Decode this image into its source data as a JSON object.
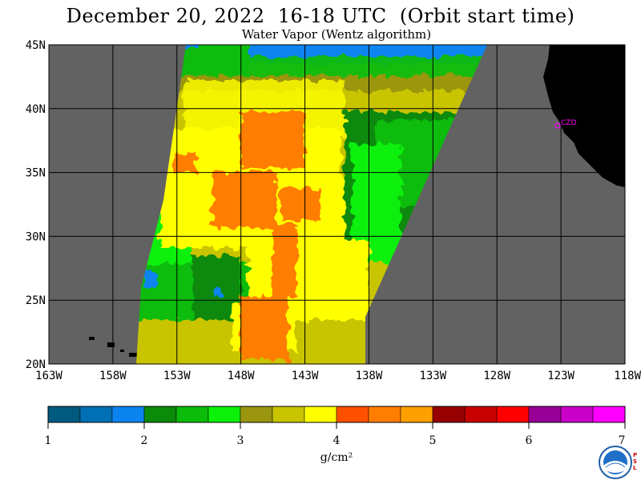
{
  "title": "December 20, 2022  16-18 UTC  (Orbit start time)",
  "subtitle": "Water Vapor (Wentz algorithm)",
  "units": "g/cm²",
  "station_label": "CZD",
  "map": {
    "lon_range": [
      -163,
      -118
    ],
    "lat_range": [
      20,
      45
    ],
    "lat_ticks": [
      {
        "value": 45,
        "label": "45N"
      },
      {
        "value": 40,
        "label": "40N"
      },
      {
        "value": 35,
        "label": "35N"
      },
      {
        "value": 30,
        "label": "30N"
      },
      {
        "value": 25,
        "label": "25N"
      },
      {
        "value": 20,
        "label": "20N"
      }
    ],
    "lon_ticks": [
      {
        "value": -163,
        "label": "163W"
      },
      {
        "value": -158,
        "label": "158W"
      },
      {
        "value": -153,
        "label": "153W"
      },
      {
        "value": -148,
        "label": "148W"
      },
      {
        "value": -143,
        "label": "143W"
      },
      {
        "value": -138,
        "label": "138W"
      },
      {
        "value": -133,
        "label": "133W"
      },
      {
        "value": -128,
        "label": "128W"
      },
      {
        "value": -123,
        "label": "123W"
      },
      {
        "value": -118,
        "label": "118W"
      }
    ],
    "no_data_color": "#626262",
    "land_color": "#000000",
    "grid_color": "#000000"
  },
  "colorbar": {
    "colors": [
      "#005a7f",
      "#0070b4",
      "#0c84f0",
      "#0c8a0a",
      "#0cbc0a",
      "#0cf00a",
      "#9a9610",
      "#c8c400",
      "#ffff00",
      "#ff5000",
      "#ff7d00",
      "#ffa000",
      "#960000",
      "#c80000",
      "#ff0000",
      "#960096",
      "#c800c8",
      "#ff00ff"
    ],
    "ticks": [
      "1",
      "2",
      "3",
      "4",
      "5",
      "6",
      "7"
    ]
  }
}
